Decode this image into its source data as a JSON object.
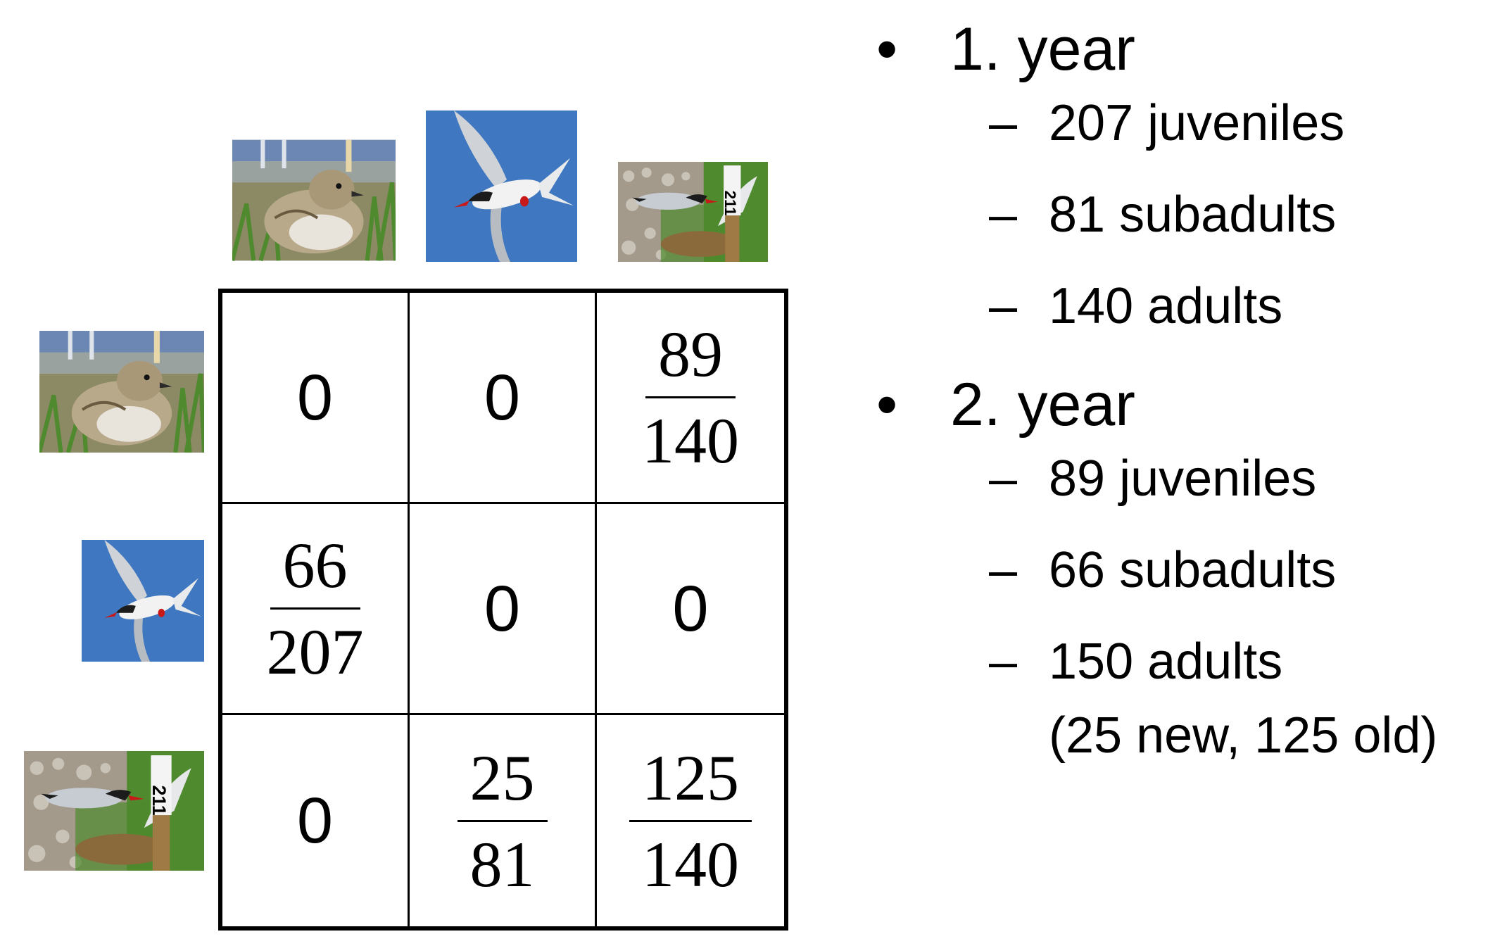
{
  "images": {
    "chick": "juvenile tern chick photo",
    "flying": "subadult tern in flight photo",
    "nesting": "adult tern at nest with marker 211 photo"
  },
  "matrix": {
    "rows": [
      [
        {
          "type": "zero",
          "value": "0"
        },
        {
          "type": "zero",
          "value": "0"
        },
        {
          "type": "frac",
          "num": "89",
          "den": "140"
        }
      ],
      [
        {
          "type": "frac",
          "num": "66",
          "den": "207"
        },
        {
          "type": "zero",
          "value": "0"
        },
        {
          "type": "zero",
          "value": "0"
        }
      ],
      [
        {
          "type": "zero",
          "value": "0"
        },
        {
          "type": "frac",
          "num": "25",
          "den": "81"
        },
        {
          "type": "frac",
          "num": "125",
          "den": "140"
        }
      ]
    ]
  },
  "marker_label": "211",
  "list": {
    "bullet_glyph": "•",
    "dash_glyph": "–",
    "year1": {
      "label": "1. year",
      "items": [
        "207 juveniles",
        "81 subadults",
        "140 adults"
      ]
    },
    "year2": {
      "label": "2. year",
      "items": [
        "89 juveniles",
        "66 subadults",
        "150 adults"
      ],
      "note": "(25 new, 125 old)"
    }
  },
  "colors": {
    "sky": "#3f78c0",
    "grass": "#4f8a2e",
    "text": "#000000"
  }
}
